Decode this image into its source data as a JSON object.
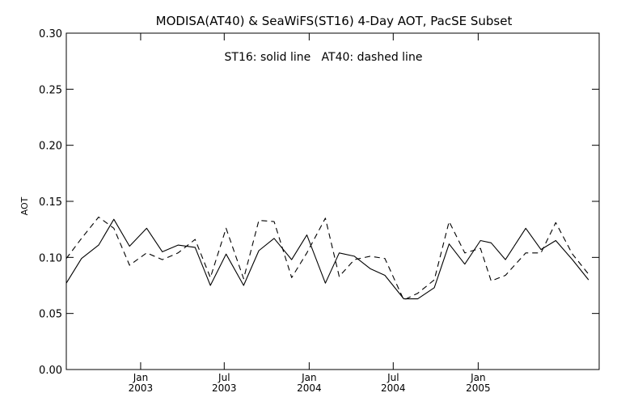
{
  "chart_data": {
    "type": "line",
    "title": "MODISA(AT40) & SeaWiFS(ST16) 4-Day AOT, PacSE Subset",
    "annotation": "ST16: solid line   AT40: dashed line",
    "ylabel": "AOT",
    "xlabel": "",
    "ylim": [
      0.0,
      0.3
    ],
    "xlim": [
      "2002-07-24",
      "2005-09-20"
    ],
    "grid": false,
    "y_ticks": [
      "0.00",
      "0.05",
      "0.10",
      "0.15",
      "0.20",
      "0.25",
      "0.30"
    ],
    "x_ticks": [
      {
        "date": "2003-01-01",
        "month": "Jan",
        "year": "2003"
      },
      {
        "date": "2003-07-01",
        "month": "Jul",
        "year": "2003"
      },
      {
        "date": "2004-01-01",
        "month": "Jan",
        "year": "2004"
      },
      {
        "date": "2004-07-01",
        "month": "Jul",
        "year": "2004"
      },
      {
        "date": "2005-01-01",
        "month": "Jan",
        "year": "2005"
      }
    ],
    "series": [
      {
        "name": "ST16",
        "style": "solid",
        "x": [
          "2002-07-24",
          "2002-08-26",
          "2002-10-02",
          "2002-11-04",
          "2002-12-08",
          "2003-01-14",
          "2003-02-17",
          "2003-03-23",
          "2003-04-29",
          "2003-06-01",
          "2003-07-05",
          "2003-08-12",
          "2003-09-14",
          "2003-10-17",
          "2003-11-24",
          "2003-12-27",
          "2004-02-05",
          "2004-03-06",
          "2004-04-08",
          "2004-05-12",
          "2004-06-13",
          "2004-07-24",
          "2004-08-23",
          "2004-09-28",
          "2004-10-30",
          "2004-12-03",
          "2005-01-06",
          "2005-01-29",
          "2005-03-01",
          "2005-04-14",
          "2005-05-17",
          "2005-06-18",
          "2005-07-24",
          "2005-08-28"
        ],
        "values": [
          0.077,
          0.099,
          0.111,
          0.134,
          0.11,
          0.126,
          0.105,
          0.111,
          0.109,
          0.075,
          0.103,
          0.075,
          0.106,
          0.117,
          0.098,
          0.12,
          0.077,
          0.104,
          0.101,
          0.09,
          0.084,
          0.063,
          0.063,
          0.073,
          0.112,
          0.094,
          0.115,
          0.113,
          0.098,
          0.126,
          0.107,
          0.115,
          0.098,
          0.08
        ]
      },
      {
        "name": "AT40",
        "style": "dashed",
        "x": [
          "2002-07-24",
          "2002-08-26",
          "2002-10-02",
          "2002-11-04",
          "2002-12-08",
          "2003-01-14",
          "2003-02-17",
          "2003-03-23",
          "2003-04-29",
          "2003-06-01",
          "2003-07-05",
          "2003-08-12",
          "2003-09-14",
          "2003-10-17",
          "2003-11-24",
          "2003-12-27",
          "2004-02-05",
          "2004-03-06",
          "2004-04-08",
          "2004-05-12",
          "2004-06-13",
          "2004-07-24",
          "2004-08-23",
          "2004-09-28",
          "2004-10-30",
          "2004-12-03",
          "2005-01-06",
          "2005-01-29",
          "2005-03-01",
          "2005-04-14",
          "2005-05-17",
          "2005-06-18",
          "2005-07-24",
          "2005-08-28"
        ],
        "values": [
          0.099,
          0.117,
          0.136,
          0.126,
          0.093,
          0.104,
          0.098,
          0.104,
          0.116,
          0.082,
          0.126,
          0.081,
          0.133,
          0.132,
          0.082,
          0.104,
          0.135,
          0.083,
          0.098,
          0.101,
          0.099,
          0.062,
          0.068,
          0.08,
          0.132,
          0.104,
          0.108,
          0.079,
          0.084,
          0.104,
          0.104,
          0.131,
          0.103,
          0.085
        ]
      }
    ]
  }
}
